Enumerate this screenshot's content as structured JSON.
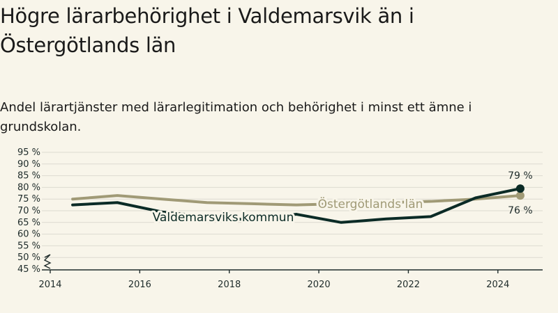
{
  "title": "Högre lärarbehörighet i Valdemarsvik än i Östergötlands län",
  "subtitle": "Andel lärartjänster med lärarlegitimation och behörighet i minst ett ämne i grundskolan.",
  "colors": {
    "background": "#f8f5ea",
    "valdemarsvik": "#0b2b26",
    "ostergotland": "#a09a76",
    "grid": "#dcdad0"
  },
  "chart_data": {
    "type": "line",
    "x": [
      2014.5,
      2015.5,
      2016.5,
      2017.5,
      2018.5,
      2019.5,
      2020.5,
      2021.5,
      2022.5,
      2023.5,
      2024.5
    ],
    "series": [
      {
        "name": "Valdemarsviks kommun",
        "values": [
          72.5,
          73.5,
          69.5,
          67.5,
          66.0,
          68.5,
          65.0,
          66.5,
          67.5,
          75.5,
          79.5
        ],
        "end_label": "79 %"
      },
      {
        "name": "Östergötlands län",
        "values": [
          75.0,
          76.5,
          75.0,
          73.5,
          73.0,
          72.5,
          73.0,
          73.5,
          74.0,
          75.0,
          76.5
        ],
        "end_label": "76 %"
      }
    ],
    "y_ticks": [
      "95 %",
      "90 %",
      "85 %",
      "80 %",
      "75 %",
      "70 %",
      "65 %",
      "60 %",
      "55 %",
      "50 %",
      "45 %"
    ],
    "x_ticks": [
      "2014",
      "2016",
      "2018",
      "2020",
      "2022",
      "2024"
    ],
    "ylim": [
      45,
      95
    ],
    "xlim": [
      2014,
      2025
    ],
    "grid": true,
    "axis_break": true
  }
}
